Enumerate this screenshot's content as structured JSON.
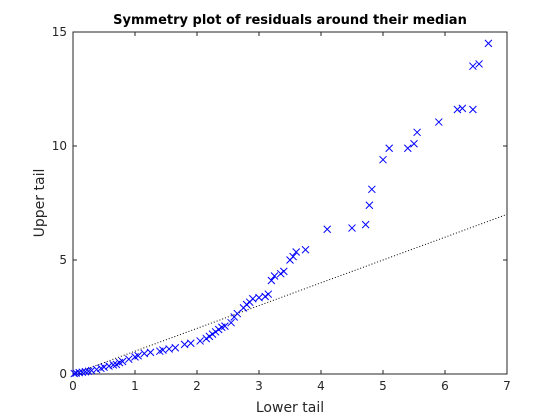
{
  "chart_data": {
    "type": "scatter",
    "title": "Symmetry plot of residuals around their median",
    "xlabel": "Lower tail",
    "ylabel": "Upper tail",
    "xlim": [
      0,
      7
    ],
    "ylim": [
      0,
      15
    ],
    "x_ticks": [
      "0",
      "1",
      "2",
      "3",
      "4",
      "5",
      "6",
      "7"
    ],
    "y_ticks": [
      "0",
      "5",
      "10",
      "15"
    ],
    "grid": false,
    "marker": "x",
    "marker_color": "#0000ff",
    "reference_line": {
      "style": "dotted",
      "color": "#000000",
      "x": [
        0,
        7
      ],
      "y": [
        0,
        7
      ]
    },
    "points": [
      [
        0.02,
        0.02
      ],
      [
        0.05,
        0.04
      ],
      [
        0.1,
        0.06
      ],
      [
        0.15,
        0.08
      ],
      [
        0.2,
        0.1
      ],
      [
        0.25,
        0.12
      ],
      [
        0.3,
        0.15
      ],
      [
        0.38,
        0.2
      ],
      [
        0.45,
        0.25
      ],
      [
        0.5,
        0.3
      ],
      [
        0.58,
        0.35
      ],
      [
        0.65,
        0.4
      ],
      [
        0.7,
        0.42
      ],
      [
        0.75,
        0.5
      ],
      [
        0.8,
        0.55
      ],
      [
        0.9,
        0.65
      ],
      [
        1.0,
        0.75
      ],
      [
        1.05,
        0.8
      ],
      [
        1.15,
        0.9
      ],
      [
        1.25,
        0.95
      ],
      [
        1.4,
        1.0
      ],
      [
        1.45,
        1.05
      ],
      [
        1.55,
        1.1
      ],
      [
        1.65,
        1.15
      ],
      [
        1.8,
        1.3
      ],
      [
        1.9,
        1.35
      ],
      [
        2.05,
        1.45
      ],
      [
        2.15,
        1.55
      ],
      [
        2.2,
        1.65
      ],
      [
        2.25,
        1.75
      ],
      [
        2.3,
        1.85
      ],
      [
        2.35,
        1.95
      ],
      [
        2.4,
        2.05
      ],
      [
        2.45,
        2.1
      ],
      [
        2.55,
        2.25
      ],
      [
        2.6,
        2.5
      ],
      [
        2.65,
        2.65
      ],
      [
        2.75,
        2.9
      ],
      [
        2.8,
        3.05
      ],
      [
        2.85,
        3.15
      ],
      [
        2.9,
        3.3
      ],
      [
        3.0,
        3.35
      ],
      [
        3.1,
        3.4
      ],
      [
        3.15,
        3.5
      ],
      [
        3.2,
        4.1
      ],
      [
        3.25,
        4.3
      ],
      [
        3.35,
        4.4
      ],
      [
        3.4,
        4.5
      ],
      [
        3.5,
        5.0
      ],
      [
        3.55,
        5.15
      ],
      [
        3.6,
        5.35
      ],
      [
        3.75,
        5.45
      ],
      [
        4.1,
        6.35
      ],
      [
        4.5,
        6.4
      ],
      [
        4.72,
        6.55
      ],
      [
        4.78,
        7.4
      ],
      [
        4.82,
        8.1
      ],
      [
        5.0,
        9.4
      ],
      [
        5.1,
        9.9
      ],
      [
        5.4,
        9.9
      ],
      [
        5.5,
        10.1
      ],
      [
        5.55,
        10.6
      ],
      [
        5.9,
        11.05
      ],
      [
        6.2,
        11.6
      ],
      [
        6.28,
        11.65
      ],
      [
        6.45,
        11.6
      ],
      [
        6.45,
        13.5
      ],
      [
        6.55,
        13.6
      ],
      [
        6.7,
        14.5
      ]
    ]
  }
}
